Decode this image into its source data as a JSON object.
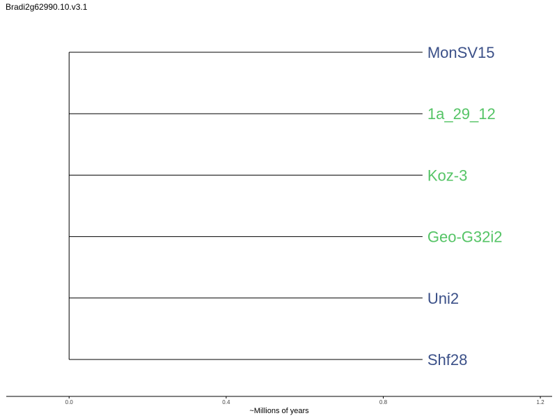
{
  "chart_data": {
    "type": "dendrogram",
    "title": "Bradi2g62990.10.v3.1",
    "xlabel": "~Millions of years",
    "xlim": [
      -0.16,
      1.23
    ],
    "xticks": [
      0.0,
      0.4,
      0.8,
      1.2
    ],
    "xtick_labels": [
      "0.0",
      "0.4",
      "0.8",
      "1.2"
    ],
    "root_x": 0.0,
    "tip_x": 0.9,
    "tips": [
      {
        "label": "MonSV15",
        "color": "#3b5088"
      },
      {
        "label": "1a_29_12",
        "color": "#55c466"
      },
      {
        "label": "Koz-3",
        "color": "#55c466"
      },
      {
        "label": "Geo-G32i2",
        "color": "#55c466"
      },
      {
        "label": "Uni2",
        "color": "#3b5088"
      },
      {
        "label": "Shf28",
        "color": "#3b5088"
      }
    ],
    "grid": false
  }
}
